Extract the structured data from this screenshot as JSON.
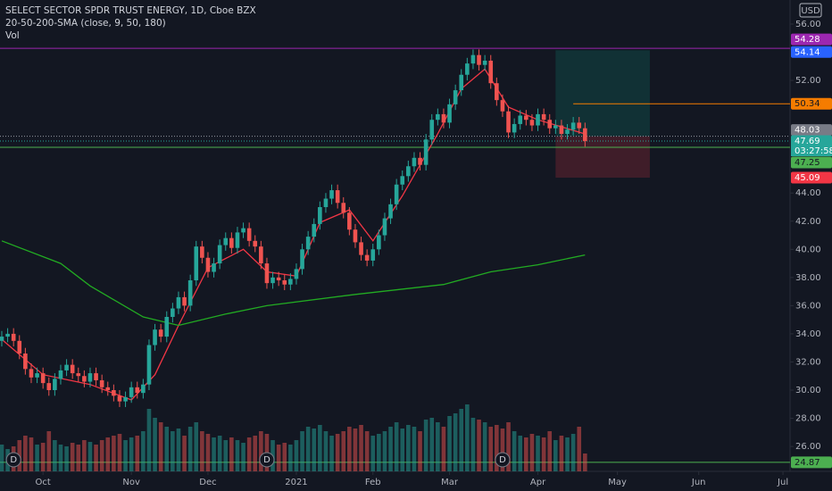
{
  "chart_data": {
    "type": "candlestick",
    "title": "SELECT SECTOR SPDR TRUST ENERGY, 1D, Cboe BZX",
    "indicator": "20-50-200-SMA (close, 9, 50, 180)",
    "volume_label": "Vol",
    "currency": "USD",
    "countdown": "03:27:58",
    "up_color": "#26a69a",
    "down_color": "#ef5350",
    "open": [
      33.5,
      33.8,
      34.0,
      33.5,
      32.6,
      31.5,
      30.9,
      31.2,
      30.5,
      30.0,
      30.8,
      31.4,
      31.8,
      31.2,
      31.0,
      30.6,
      31.2,
      30.7,
      30.2,
      30.0,
      29.6,
      29.2,
      29.5,
      30.2,
      29.8,
      30.4,
      33.2,
      34.3,
      33.8,
      35.2,
      35.8,
      36.6,
      36.0,
      37.8,
      40.2,
      39.4,
      38.4,
      39.0,
      40.3,
      40.8,
      40.1,
      41.2,
      41.5,
      40.6,
      40.2,
      39.0,
      37.6,
      38.0,
      37.8,
      37.5,
      37.9,
      38.6,
      40.0,
      40.9,
      41.8,
      43.0,
      43.6,
      44.2,
      43.3,
      42.6,
      41.4,
      40.5,
      39.6,
      39.2,
      40.0,
      41.0,
      42.2,
      43.2,
      44.6,
      45.2,
      45.9,
      46.5,
      46.0,
      47.8,
      49.2,
      49.6,
      49.0,
      50.3,
      51.3,
      52.4,
      53.2,
      53.8,
      53.1,
      53.4,
      51.8,
      50.6,
      49.8,
      48.3,
      48.9,
      49.5,
      49.2,
      48.8,
      49.6,
      49.2,
      48.6,
      48.8,
      48.2,
      48.5,
      49.0,
      48.6
    ],
    "high": [
      34.2,
      34.4,
      34.4,
      33.9,
      33.0,
      31.9,
      31.6,
      31.6,
      30.9,
      31.2,
      31.8,
      32.2,
      32.2,
      31.6,
      31.4,
      31.6,
      31.6,
      31.1,
      30.6,
      30.4,
      30.0,
      29.9,
      30.6,
      30.6,
      30.8,
      33.6,
      34.7,
      34.7,
      35.6,
      36.2,
      37.0,
      37.0,
      38.2,
      40.6,
      40.6,
      39.8,
      39.4,
      40.7,
      41.2,
      41.2,
      41.6,
      41.9,
      41.9,
      41.0,
      40.6,
      39.4,
      38.4,
      38.4,
      38.2,
      38.3,
      39.0,
      40.4,
      41.3,
      42.2,
      43.4,
      44.0,
      44.6,
      44.6,
      43.7,
      43.0,
      41.8,
      40.9,
      40.0,
      40.4,
      41.4,
      42.6,
      43.6,
      45.0,
      45.6,
      46.3,
      46.9,
      46.9,
      48.2,
      49.6,
      50.0,
      50.0,
      50.7,
      51.7,
      52.8,
      53.6,
      54.2,
      54.2,
      53.8,
      53.8,
      52.2,
      51.0,
      50.2,
      49.3,
      49.9,
      49.9,
      49.6,
      50.0,
      50.0,
      49.6,
      49.2,
      49.2,
      48.9,
      49.4,
      49.4,
      49.0
    ],
    "low": [
      33.1,
      33.4,
      33.1,
      32.2,
      31.1,
      30.5,
      30.5,
      30.1,
      29.6,
      29.6,
      30.4,
      31.0,
      30.8,
      30.6,
      30.2,
      30.2,
      30.3,
      29.8,
      29.6,
      29.2,
      28.8,
      28.8,
      29.1,
      29.4,
      29.4,
      30.0,
      32.8,
      33.4,
      33.4,
      34.8,
      35.4,
      35.6,
      35.6,
      37.4,
      39.0,
      38.0,
      38.0,
      38.6,
      39.9,
      39.7,
      39.7,
      40.8,
      40.2,
      39.8,
      38.6,
      37.2,
      37.2,
      37.4,
      37.1,
      37.1,
      37.5,
      38.2,
      39.6,
      40.5,
      41.4,
      42.6,
      43.2,
      42.9,
      42.2,
      41.0,
      40.1,
      39.2,
      38.8,
      38.8,
      39.6,
      40.6,
      41.8,
      42.8,
      44.2,
      44.8,
      45.5,
      45.6,
      45.6,
      47.4,
      48.8,
      48.6,
      48.6,
      49.9,
      50.9,
      52.0,
      52.8,
      52.7,
      52.7,
      51.4,
      50.2,
      49.4,
      47.9,
      47.9,
      48.5,
      48.8,
      48.4,
      48.4,
      48.8,
      48.2,
      48.2,
      47.8,
      47.8,
      48.1,
      48.2,
      47.29
    ],
    "close": [
      33.8,
      34.0,
      33.5,
      32.6,
      31.5,
      30.9,
      31.2,
      30.5,
      30.0,
      30.8,
      31.4,
      31.8,
      31.2,
      31.0,
      30.6,
      31.2,
      30.7,
      30.2,
      30.0,
      29.6,
      29.2,
      29.5,
      30.2,
      29.8,
      30.4,
      33.2,
      34.3,
      33.8,
      35.2,
      35.8,
      36.6,
      36.0,
      37.8,
      40.2,
      39.4,
      38.4,
      39.0,
      40.3,
      40.8,
      40.1,
      41.2,
      41.5,
      40.6,
      40.2,
      39.0,
      37.6,
      38.0,
      37.8,
      37.5,
      37.9,
      38.6,
      40.0,
      40.9,
      41.8,
      43.0,
      43.6,
      44.2,
      43.3,
      42.6,
      41.4,
      40.5,
      39.6,
      39.2,
      40.0,
      41.0,
      42.2,
      43.2,
      44.6,
      45.2,
      45.9,
      46.5,
      46.0,
      47.8,
      49.2,
      49.6,
      49.0,
      50.3,
      51.3,
      52.4,
      53.2,
      53.8,
      53.1,
      53.4,
      51.8,
      50.6,
      49.8,
      48.3,
      48.9,
      49.5,
      49.2,
      48.8,
      49.6,
      49.2,
      48.6,
      48.8,
      48.2,
      48.5,
      49.0,
      48.6,
      47.69
    ],
    "volume": [
      30,
      25,
      28,
      35,
      40,
      38,
      30,
      32,
      45,
      35,
      30,
      28,
      32,
      30,
      35,
      33,
      30,
      35,
      38,
      40,
      42,
      35,
      38,
      40,
      45,
      70,
      60,
      55,
      50,
      45,
      48,
      40,
      50,
      55,
      45,
      42,
      38,
      40,
      35,
      38,
      35,
      32,
      38,
      40,
      45,
      42,
      35,
      30,
      32,
      30,
      35,
      45,
      50,
      48,
      52,
      45,
      40,
      42,
      45,
      50,
      48,
      52,
      45,
      40,
      42,
      45,
      50,
      55,
      48,
      52,
      50,
      45,
      58,
      60,
      55,
      50,
      62,
      65,
      70,
      75,
      60,
      58,
      55,
      50,
      52,
      48,
      55,
      45,
      40,
      38,
      42,
      40,
      38,
      45,
      35,
      40,
      38,
      42,
      50,
      20
    ],
    "ylim": [
      24.23,
      57.71
    ],
    "yticks": [
      {
        "value": 26,
        "label": "26.00"
      },
      {
        "value": 28,
        "label": "28.00"
      },
      {
        "value": 30,
        "label": "30.00"
      },
      {
        "value": 32,
        "label": "32.00"
      },
      {
        "value": 34,
        "label": "34.00"
      },
      {
        "value": 36,
        "label": "36.00"
      },
      {
        "value": 38,
        "label": "38.00"
      },
      {
        "value": 40,
        "label": "40.00"
      },
      {
        "value": 42,
        "label": "42.00"
      },
      {
        "value": 44,
        "label": "44.00"
      },
      {
        "value": 52,
        "label": "52.00"
      },
      {
        "value": 56,
        "label": "56.00"
      }
    ],
    "xlim": [
      -0.3,
      133.8
    ],
    "xticks": [
      {
        "value": 7,
        "label": "Oct"
      },
      {
        "value": 22,
        "label": "Nov"
      },
      {
        "value": 35,
        "label": "Dec"
      },
      {
        "value": 50,
        "label": "2021"
      },
      {
        "value": 63,
        "label": "Feb"
      },
      {
        "value": 76,
        "label": "Mar"
      },
      {
        "value": 91,
        "label": "Apr"
      },
      {
        "value": 104.5,
        "label": "May"
      },
      {
        "value": 118.3,
        "label": "Jun"
      },
      {
        "value": 132.6,
        "label": "Jul"
      }
    ],
    "sma": [
      {
        "color": "#f23645",
        "x": [
          0,
          7,
          15,
          22,
          26,
          30,
          35,
          41,
          45,
          50,
          54,
          59,
          63,
          68,
          74,
          78,
          82,
          86,
          91,
          99
        ],
        "values": [
          33.6,
          31.1,
          30.4,
          29.3,
          31.1,
          34.6,
          38.7,
          40.0,
          38.4,
          38.1,
          41.9,
          42.8,
          40.6,
          43.8,
          48.2,
          51.4,
          52.8,
          50.1,
          49.2,
          48.2
        ]
      },
      {
        "color": "#22ab22",
        "x": [
          0,
          10,
          15,
          24,
          30,
          38,
          45,
          60,
          75,
          83,
          91,
          99
        ],
        "values": [
          40.6,
          39.0,
          37.4,
          35.2,
          34.6,
          35.4,
          36.0,
          36.8,
          37.5,
          38.4,
          38.9,
          39.6
        ]
      }
    ],
    "levels": [
      {
        "value": 54.28,
        "color": "#9c27b0",
        "from": -0.3
      },
      {
        "value": 50.34,
        "color": "#f57c00",
        "from": 97
      },
      {
        "value": 47.25,
        "color": "#4caf50",
        "from": -0.3
      },
      {
        "value": 24.87,
        "color": "#4caf50",
        "from": -0.3
      }
    ],
    "position": {
      "target": 54.14,
      "entry": 48.03,
      "stop": 45.09,
      "from": 94,
      "to": 110
    },
    "events": [
      {
        "x": 2,
        "label": "D"
      },
      {
        "x": 45,
        "label": "D"
      },
      {
        "x": 85,
        "label": "D"
      }
    ]
  }
}
